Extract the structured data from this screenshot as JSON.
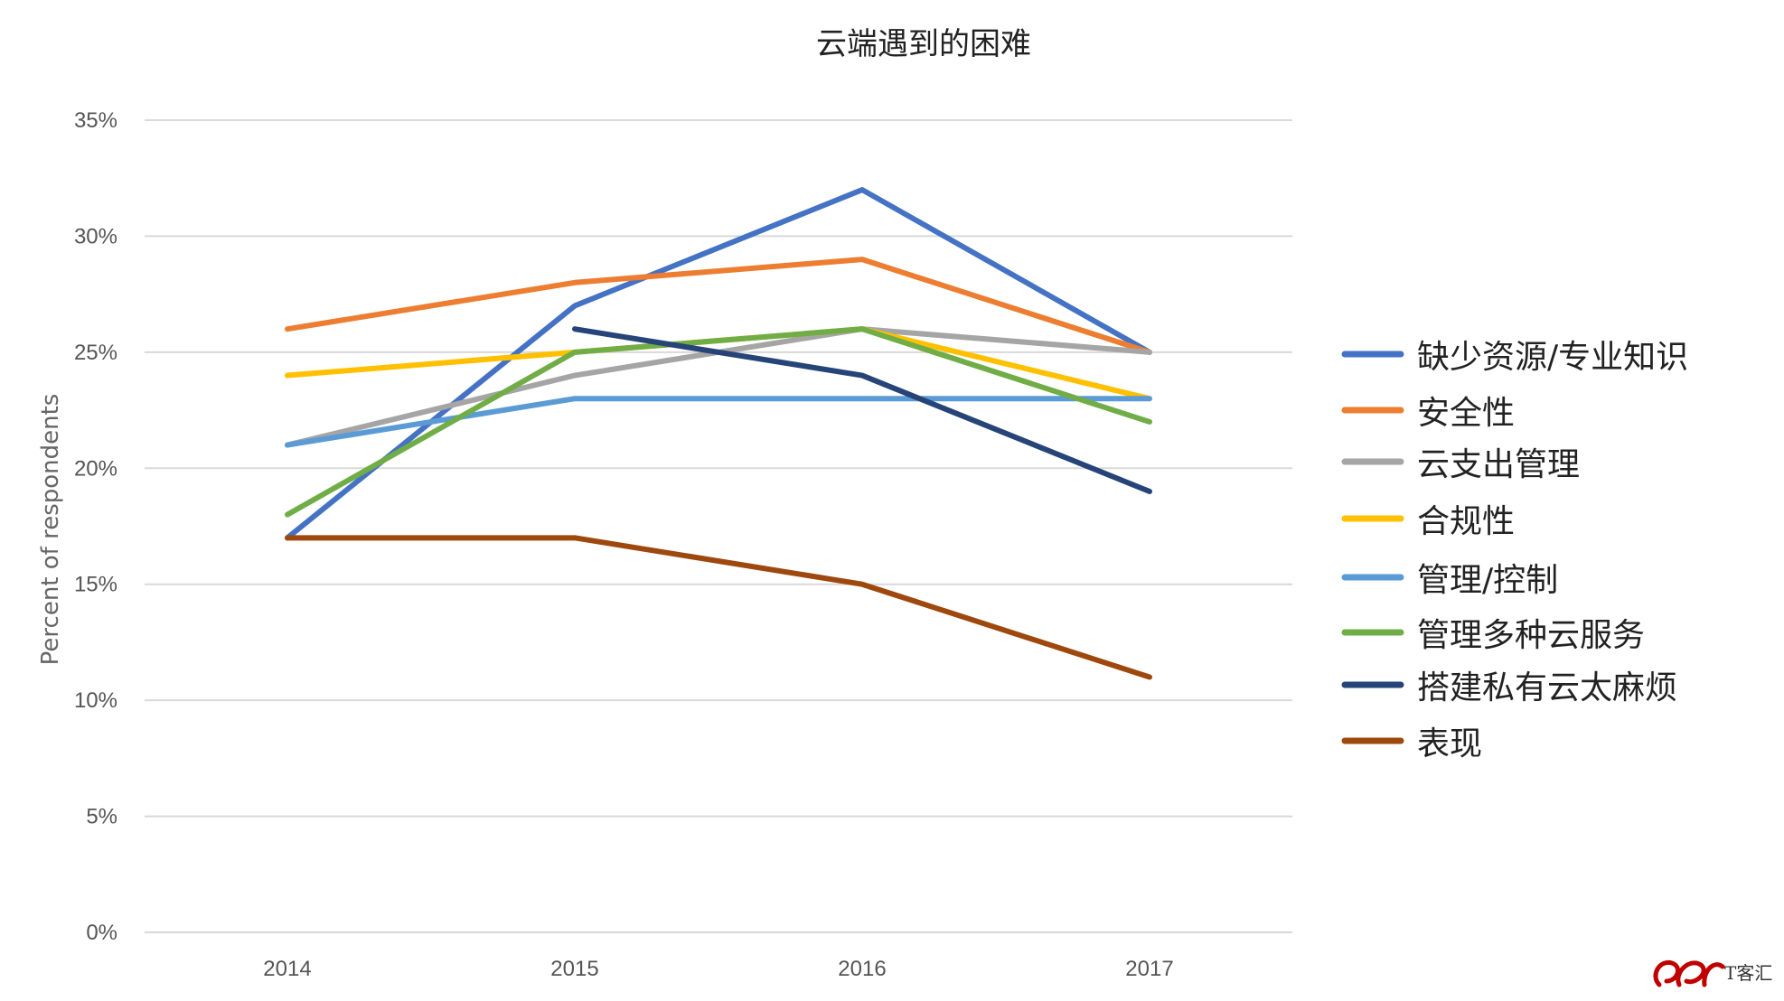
{
  "chart_data": {
    "type": "line",
    "title": "云端遇到的困难",
    "ylabel": "Percent of respondents",
    "xlabel": "",
    "x": [
      "2014",
      "2015",
      "2016",
      "2017"
    ],
    "ylim": [
      0,
      35
    ],
    "yticks": [
      "0%",
      "5%",
      "10%",
      "15%",
      "20%",
      "25%",
      "30%",
      "35%"
    ],
    "grid": true,
    "legend_position": "right",
    "series": [
      {
        "name": "缺少资源/专业知识",
        "color": "#4472c4",
        "values": [
          17,
          27,
          32,
          25
        ]
      },
      {
        "name": "安全性",
        "color": "#ed7d31",
        "values": [
          26,
          28,
          29,
          25
        ]
      },
      {
        "name": "云支出管理",
        "color": "#a5a5a5",
        "values": [
          21,
          24,
          26,
          25
        ]
      },
      {
        "name": "合规性",
        "color": "#ffc000",
        "values": [
          24,
          25,
          26,
          23
        ]
      },
      {
        "name": "管理/控制",
        "color": "#5b9bd5",
        "values": [
          21,
          23,
          23,
          23
        ]
      },
      {
        "name": "管理多种云服务",
        "color": "#70ad47",
        "values": [
          18,
          25,
          26,
          22
        ]
      },
      {
        "name": "搭建私有云太麻烦",
        "color": "#264478",
        "values": [
          null,
          26,
          24,
          19
        ]
      },
      {
        "name": "表现",
        "color": "#9e480e",
        "values": [
          17,
          17,
          15,
          11
        ]
      }
    ]
  },
  "watermark": {
    "text": "T客汇",
    "color": "#c00000"
  }
}
